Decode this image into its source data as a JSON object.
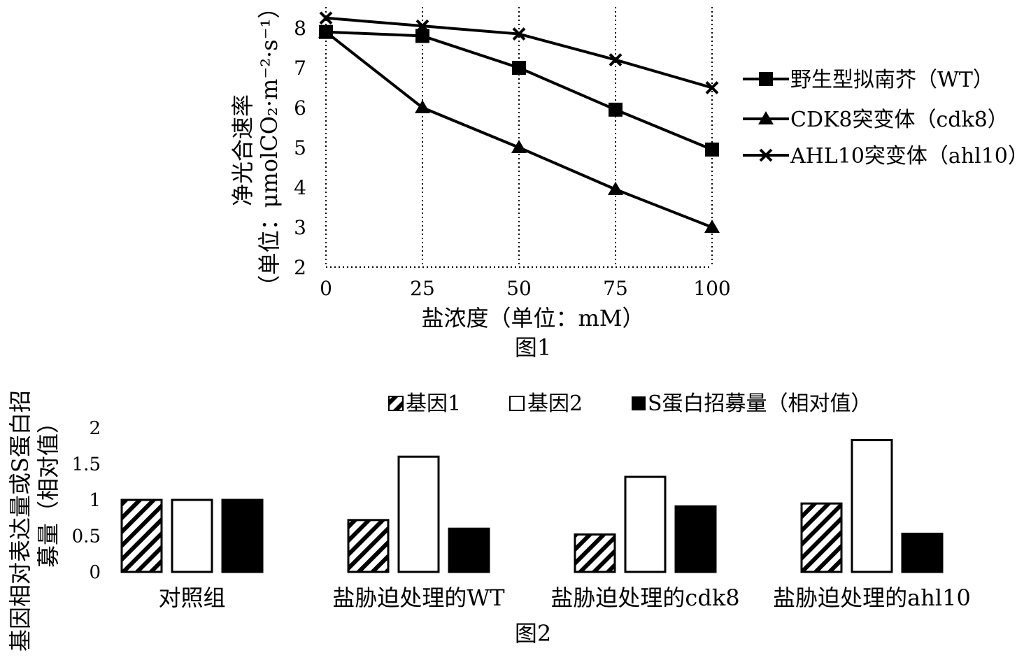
{
  "chart_data": [
    {
      "type": "line",
      "caption": "图1",
      "xlabel": "盐浓度（单位：mM）",
      "ylabel_line1": "净光合速率",
      "ylabel_line2": "（单位：μmolCO₂·m⁻²·s⁻¹）",
      "x": [
        0,
        25,
        50,
        75,
        100
      ],
      "x_ticks": [
        "0",
        "25",
        "50",
        "75",
        "100"
      ],
      "y_ticks": [
        "2",
        "3",
        "4",
        "5",
        "6",
        "7",
        "8"
      ],
      "ylim": [
        2,
        8
      ],
      "vertical_dotted_grid": true,
      "legend_position": "right",
      "series": [
        {
          "name": "野生型拟南芥（WT）",
          "marker": "square",
          "values": [
            7.9,
            7.8,
            7.0,
            5.95,
            4.95
          ]
        },
        {
          "name": "CDK8突变体（cdk8）",
          "marker": "triangle",
          "values": [
            7.9,
            6.0,
            5.0,
            3.95,
            3.0
          ]
        },
        {
          "name": "AHL10突变体（ahl10）",
          "marker": "x",
          "values": [
            8.25,
            8.05,
            7.85,
            7.2,
            6.5
          ]
        }
      ]
    },
    {
      "type": "bar",
      "caption": "图2",
      "ylabel_line1": "基因相对表达量或S蛋白招",
      "ylabel_line2": "募量（相对值）",
      "categories": [
        "对照组",
        "盐胁迫处理的WT",
        "盐胁迫处理的cdk8",
        "盐胁迫处理的ahl10"
      ],
      "y_ticks": [
        "0",
        "0.5",
        "1",
        "1.5",
        "2"
      ],
      "ylim": [
        0,
        2
      ],
      "legend_position": "top",
      "series": [
        {
          "name": "基因1",
          "fill": "hatched",
          "values": [
            1.0,
            0.72,
            0.52,
            0.95
          ]
        },
        {
          "name": "基因2",
          "fill": "white",
          "values": [
            1.0,
            1.6,
            1.32,
            1.83
          ]
        },
        {
          "name": "S蛋白招募量（相对值）",
          "fill": "black",
          "values": [
            1.0,
            0.6,
            0.91,
            0.53
          ]
        }
      ]
    }
  ]
}
